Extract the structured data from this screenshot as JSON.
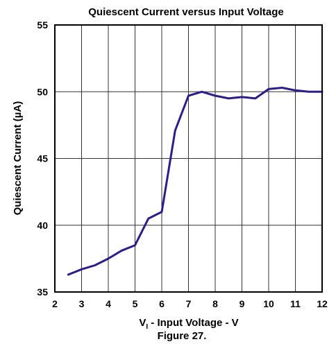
{
  "chart_data": {
    "type": "line",
    "title": "Quiescent Current versus Input Voltage",
    "xlabel_main": "V",
    "xlabel_sub": "I",
    "xlabel_rest": " - Input Voltage - V",
    "ylabel": "Quiescent Current (µA)",
    "caption": "Figure 27.",
    "xlim": [
      2,
      12
    ],
    "ylim": [
      35,
      55
    ],
    "xticks": [
      2,
      3,
      4,
      5,
      6,
      7,
      8,
      9,
      10,
      11,
      12
    ],
    "yticks": [
      35,
      40,
      45,
      50,
      55
    ],
    "grid": true,
    "line_color": "#2e1c8c",
    "series": [
      {
        "x": [
          2.5,
          3.0,
          3.5,
          4.0,
          4.5,
          5.0,
          5.5,
          6.0,
          6.5,
          7.0,
          7.5,
          8.0,
          8.5,
          9.0,
          9.5,
          10.0,
          10.5,
          11.0,
          11.5,
          12.0
        ],
        "y": [
          36.3,
          36.7,
          37.0,
          37.5,
          38.1,
          38.5,
          40.5,
          41.0,
          47.1,
          49.7,
          50.0,
          49.7,
          49.5,
          49.6,
          49.5,
          50.2,
          50.3,
          50.1,
          50.0,
          50.0
        ]
      }
    ]
  }
}
